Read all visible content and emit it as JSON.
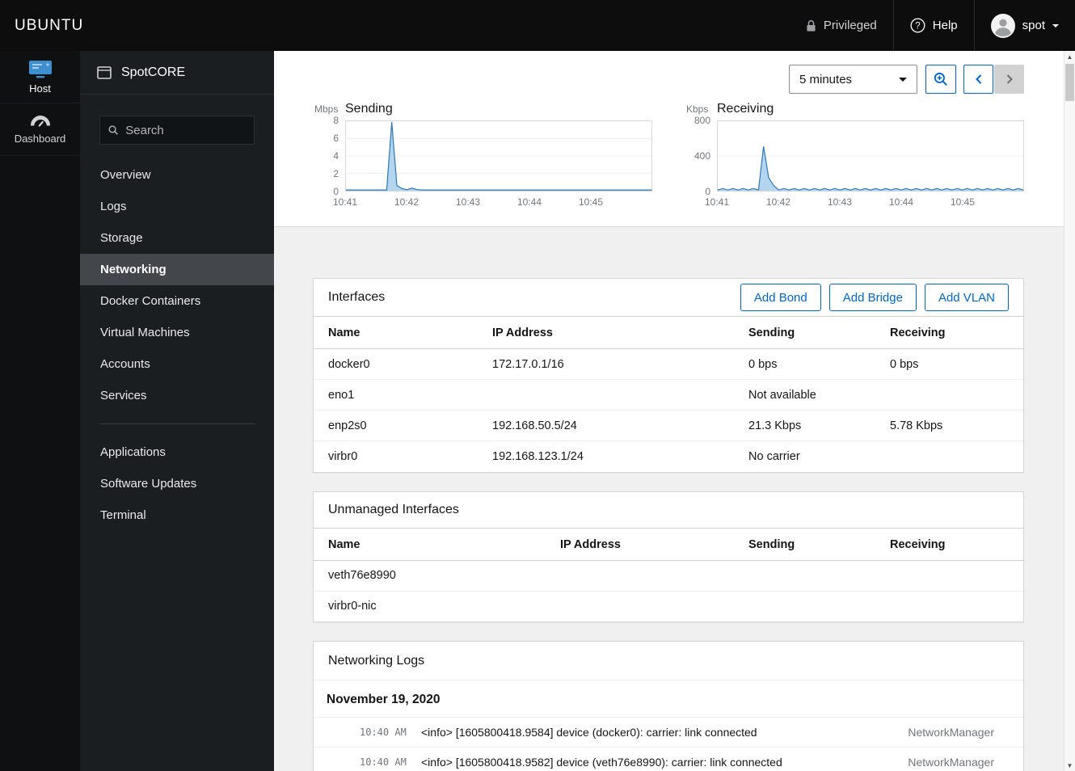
{
  "topbar": {
    "brand": "UBUNTU",
    "privileged": "Privileged",
    "help": "Help",
    "user": "spot"
  },
  "leftnav": {
    "items": [
      {
        "label": "Host"
      },
      {
        "label": "Dashboard"
      }
    ]
  },
  "sidebar": {
    "app": "SpotCORE",
    "search_placeholder": "Search",
    "items": [
      "Overview",
      "Logs",
      "Storage",
      "Networking",
      "Docker Containers",
      "Virtual Machines",
      "Accounts",
      "Services"
    ],
    "items2": [
      "Applications",
      "Software Updates",
      "Terminal"
    ],
    "selected": "Networking"
  },
  "controls": {
    "range": "5 minutes"
  },
  "chart_data": [
    {
      "type": "area",
      "title": "Sending",
      "unit": "Mbps",
      "ylim": [
        0,
        8
      ],
      "y_ticks": [
        0,
        2,
        4,
        6,
        8
      ],
      "x_ticks": [
        "10:41",
        "10:42",
        "10:43",
        "10:44",
        "10:45"
      ],
      "values": [
        0.08,
        0.08,
        0.08,
        0.08,
        0.08,
        0.08,
        0.08,
        0.08,
        0.08,
        7.9,
        0.6,
        0.25,
        0.12,
        0.3,
        0.12,
        0.08,
        0.08,
        0.08,
        0.08,
        0.08,
        0.08,
        0.08,
        0.08,
        0.08,
        0.08,
        0.08,
        0.08,
        0.08,
        0.08,
        0.08,
        0.08,
        0.08,
        0.08,
        0.08,
        0.08,
        0.08,
        0.08,
        0.08,
        0.08,
        0.08,
        0.08,
        0.08,
        0.08,
        0.08,
        0.08,
        0.08,
        0.08,
        0.08,
        0.08,
        0.08,
        0.08,
        0.08,
        0.08,
        0.08,
        0.08,
        0.08,
        0.08,
        0.08,
        0.08,
        0.08,
        0.08
      ]
    },
    {
      "type": "area",
      "title": "Receiving",
      "unit": "Kbps",
      "ylim": [
        0,
        800
      ],
      "y_ticks": [
        0,
        400,
        800
      ],
      "x_ticks": [
        "10:41",
        "10:42",
        "10:43",
        "10:44",
        "10:45"
      ],
      "values": [
        8,
        26,
        8,
        26,
        8,
        26,
        8,
        26,
        8,
        510,
        150,
        60,
        8,
        26,
        8,
        26,
        8,
        26,
        8,
        26,
        8,
        26,
        8,
        26,
        8,
        26,
        8,
        26,
        8,
        26,
        8,
        26,
        8,
        26,
        8,
        26,
        8,
        26,
        8,
        26,
        8,
        26,
        8,
        26,
        8,
        26,
        8,
        26,
        8,
        26,
        8,
        26,
        8,
        26,
        8,
        26,
        8,
        26,
        8,
        26,
        8
      ]
    }
  ],
  "interfaces": {
    "title": "Interfaces",
    "buttons": [
      "Add Bond",
      "Add Bridge",
      "Add VLAN"
    ],
    "columns": [
      "Name",
      "IP Address",
      "Sending",
      "Receiving"
    ],
    "rows": [
      {
        "name": "docker0",
        "ip": "172.17.0.1/16",
        "sending": "0 bps",
        "receiving": "0 bps"
      },
      {
        "name": "eno1",
        "ip": "",
        "sending": "Not available",
        "receiving": ""
      },
      {
        "name": "enp2s0",
        "ip": "192.168.50.5/24",
        "sending": "21.3 Kbps",
        "receiving": "5.78 Kbps"
      },
      {
        "name": "virbr0",
        "ip": "192.168.123.1/24",
        "sending": "No carrier",
        "receiving": ""
      }
    ]
  },
  "unmanaged": {
    "title": "Unmanaged Interfaces",
    "columns": [
      "Name",
      "IP Address",
      "Sending",
      "Receiving"
    ],
    "rows": [
      {
        "name": "veth76e8990",
        "ip": "",
        "sending": "",
        "receiving": ""
      },
      {
        "name": "virbr0-nic",
        "ip": "",
        "sending": "",
        "receiving": ""
      }
    ]
  },
  "logs": {
    "title": "Networking Logs",
    "date": "November 19, 2020",
    "entries": [
      {
        "time": "10:40 AM",
        "message": "<info> [1605800418.9584] device (docker0): carrier: link connected",
        "source": "NetworkManager"
      },
      {
        "time": "10:40 AM",
        "message": "<info> [1605800418.9582] device (veth76e8990): carrier: link connected",
        "source": "NetworkManager"
      }
    ]
  }
}
